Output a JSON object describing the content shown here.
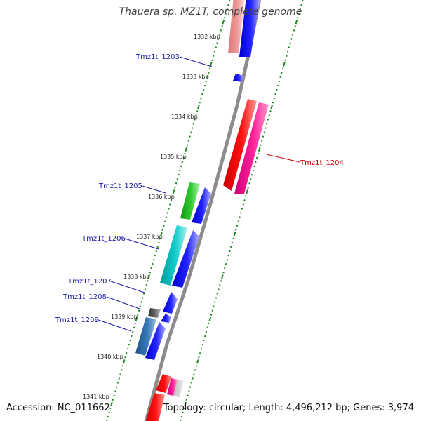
{
  "title": "Thauera sp. MZ1T, complete genome",
  "accession_text": "Accession: NC_011662",
  "summary_text": "Topology: circular; Length: 4,496,212 bp; Genes: 3,974",
  "colors": {
    "backbone": "#8c8c8c",
    "tick_line": "#1e8c1e",
    "label_forward": "#1a1aa6",
    "label_reverse": "#cc0000",
    "gene_blue": "#0000ee",
    "gene_red": "#ee0000",
    "gene_magenta": "#ee1188",
    "gene_green": "#22bb22",
    "gene_cyan": "#00bbbb",
    "gene_steel": "#3377bb",
    "gene_gray": "#555555",
    "gene_pink": "#ee8888"
  },
  "kbp_ticks": [
    "1332 kbp",
    "1333 kbp",
    "1334 kbp",
    "1335 kbp",
    "1336 kbp",
    "1337 kbp",
    "1338 kbp",
    "1339 kbp",
    "1340 kbp",
    "1341 kbp"
  ],
  "gene_labels": [
    {
      "text": "Tmz1t_1203",
      "color": "label_forward"
    },
    {
      "text": "Tmz1t_1204",
      "color": "label_reverse"
    },
    {
      "text": "Tmz1t_1205",
      "color": "label_forward"
    },
    {
      "text": "Tmz1t_1206",
      "color": "label_forward"
    },
    {
      "text": "Tmz1t_1207",
      "color": "label_forward"
    },
    {
      "text": "Tmz1t_1208",
      "color": "label_forward"
    },
    {
      "text": "Tmz1t_1209",
      "color": "label_forward"
    }
  ]
}
